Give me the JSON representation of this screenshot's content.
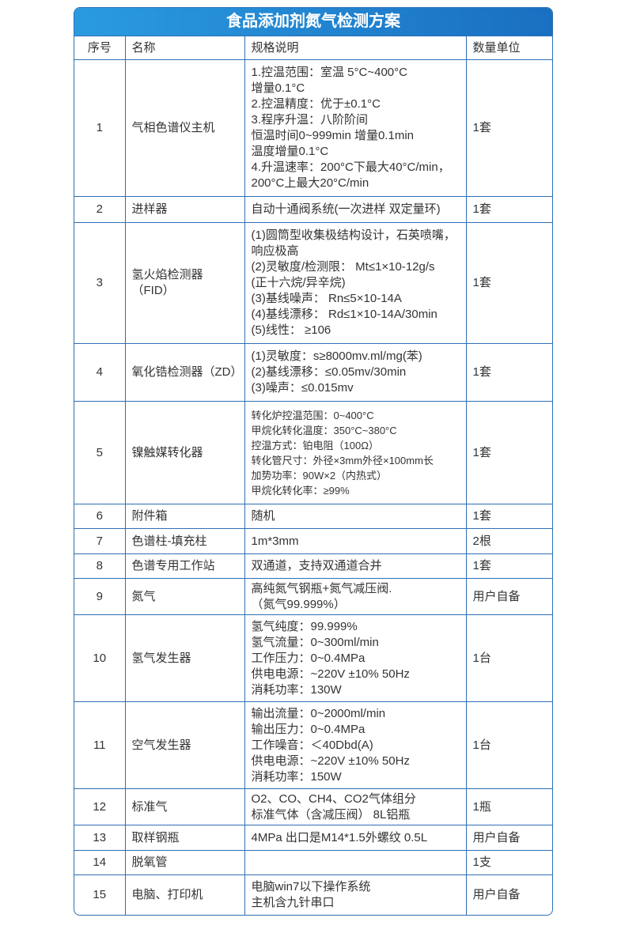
{
  "title": "食品添加剂氮气检测方案",
  "headers": [
    "序号",
    "名称",
    "规格说明",
    "数量单位"
  ],
  "rows": [
    {
      "no": "1",
      "name": "气相色谱仪主机",
      "spec": "1.控温范围：室温 5°C~400°C\n增量0.1°C\n2.控温精度：优于±0.1°C\n3.程序升温：八阶阶间\n恒温时间0~999min 增量0.1min\n温度增量0.1°C\n4.升温速率：200°C下最大40°C/min，\n200°C上最大20°C/min",
      "qty": "1套"
    },
    {
      "no": "2",
      "name": "进样器",
      "spec": "自动十通阀系统(一次进样 双定量环)",
      "qty": "1套"
    },
    {
      "no": "3",
      "name": "氢火焰检测器（FID）",
      "spec": "(1)圆筒型收集极结构设计，石英喷嘴，\n响应极高\n(2)灵敏度/检测限： Mt≤1×10-12g/s\n(正十六烷/异辛烷)\n(3)基线噪声： Rn≤5×10-14A\n(4)基线漂移： Rd≤1×10-14A/30min\n(5)线性： ≥106",
      "qty": "1套"
    },
    {
      "no": "4",
      "name": "氧化锆检测器（ZD）",
      "spec": "(1)灵敏度：s≥8000mv.ml/mg(苯)\n(2)基线漂移：≤0.05mv/30min\n(3)噪声：≤0.015mv",
      "qty": "1套"
    },
    {
      "no": "5",
      "name": "镍触媒转化器",
      "spec": "转化炉控温范围：0~400°C\n甲烷化转化温度：350°C~380°C\n控温方式：铂电阻（100Ω）\n转化管尺寸：外径×3mm外径×100mm长\n加势功率：90W×2（内热式）\n甲烷化转化率：≥99%",
      "qty": "1套"
    },
    {
      "no": "6",
      "name": "附件箱",
      "spec": "随机",
      "qty": "1套"
    },
    {
      "no": "7",
      "name": "色谱柱-填充柱",
      "spec": "1m*3mm",
      "qty": "2根"
    },
    {
      "no": "8",
      "name": "色谱专用工作站",
      "spec": "双通道，支持双通道合并",
      "qty": "1套"
    },
    {
      "no": "9",
      "name": "氮气",
      "spec": "高纯氮气钢瓶+氮气减压阀.\n（氮气99.999%）",
      "qty": "用户自备"
    },
    {
      "no": "10",
      "name": "氢气发生器",
      "spec": "氢气纯度：99.999%\n氢气流量：0~300ml/min\n工作压力：0~0.4MPa\n供电电源：~220V ±10% 50Hz\n消耗功率：130W",
      "qty": "1台"
    },
    {
      "no": "11",
      "name": "空气发生器",
      "spec": "输出流量：0~2000ml/min\n输出压力：0~0.4MPa\n工作噪音：＜40Dbd(A)\n供电电源：~220V ±10% 50Hz\n消耗功率：150W",
      "qty": "1台"
    },
    {
      "no": "12",
      "name": "标准气",
      "spec": "O2、CO、CH4、CO2气体组分\n标准气体（含减压阀） 8L铝瓶",
      "qty": "1瓶"
    },
    {
      "no": "13",
      "name": "取样钢瓶",
      "spec": "4MPa 出口是M14*1.5外螺纹 0.5L",
      "qty": "用户自备"
    },
    {
      "no": "14",
      "name": "脱氧管",
      "spec": "",
      "qty": "1支"
    },
    {
      "no": "15",
      "name": "电脑、打印机",
      "spec": "电脑win7以下操作系统\n主机含九针串口",
      "qty": "用户自备"
    }
  ],
  "colors": {
    "border": "#2f6fb5",
    "title_bg_start": "#2a9be0",
    "title_bg_end": "#1a6fc1"
  }
}
